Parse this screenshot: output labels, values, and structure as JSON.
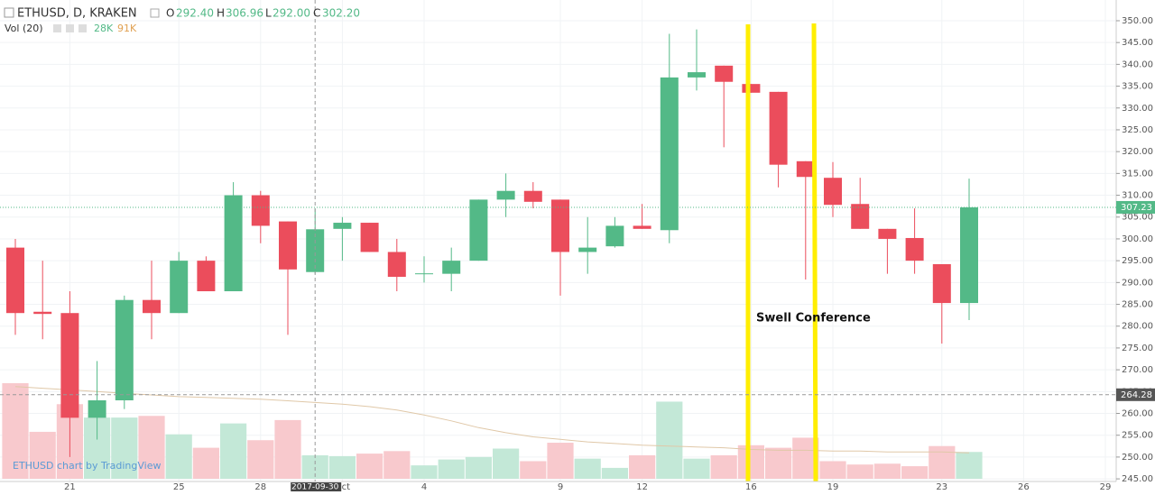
{
  "header": {
    "symbol": "ETHUSD, D, KRAKEN",
    "open_label": "O",
    "open": "292.40",
    "high_label": "H",
    "high": "306.96",
    "low_label": "L",
    "low": "292.00",
    "close_label": "C",
    "close": "302.20",
    "volume_label": "Vol (20)",
    "volume": "28K",
    "volume_ma": "91K"
  },
  "watermark": "ETHUSD chart by TradingView",
  "annotation": "Swell Conference",
  "chart_data": {
    "type": "candlestick",
    "x": [
      "2017-09-19",
      "2017-09-20",
      "2017-09-21",
      "2017-09-22",
      "2017-09-23",
      "2017-09-24",
      "2017-09-25",
      "2017-09-26",
      "2017-09-27",
      "2017-09-28",
      "2017-09-29",
      "2017-09-30",
      "2017-10-01",
      "2017-10-02",
      "2017-10-03",
      "2017-10-04",
      "2017-10-05",
      "2017-10-06",
      "2017-10-07",
      "2017-10-08",
      "2017-10-09",
      "2017-10-10",
      "2017-10-11",
      "2017-10-12",
      "2017-10-13",
      "2017-10-14",
      "2017-10-15",
      "2017-10-16",
      "2017-10-17",
      "2017-10-18",
      "2017-10-19",
      "2017-10-20",
      "2017-10-21",
      "2017-10-22",
      "2017-10-23",
      "2017-10-24"
    ],
    "open": [
      298,
      283.3,
      283,
      259,
      263,
      286,
      283,
      295,
      288,
      310,
      304,
      292.4,
      302.3,
      303.7,
      297,
      291.9,
      292,
      295,
      309,
      311,
      309,
      297,
      298.3,
      303,
      302,
      337,
      339.7,
      335.5,
      333.7,
      317.8,
      314,
      308,
      302.3,
      300.2,
      294.2,
      285.3
    ],
    "high": [
      300,
      295,
      288,
      272,
      287,
      295,
      297,
      296,
      313,
      311,
      304,
      306.96,
      305,
      303.7,
      300,
      296,
      298,
      309,
      315,
      313,
      309,
      305,
      305,
      308,
      347,
      348,
      339.7,
      335.5,
      333.7,
      317.8,
      317.6,
      314,
      302.3,
      307,
      294.2,
      313.8
    ],
    "low": [
      278,
      277,
      250,
      254,
      261,
      277,
      283,
      288,
      288,
      299,
      278,
      292.0,
      295,
      297,
      288,
      290,
      288,
      295,
      305,
      307,
      287,
      292,
      298,
      302.3,
      299,
      334,
      321,
      333.5,
      311.8,
      290.7,
      305,
      302.3,
      292,
      292,
      276,
      281.4
    ],
    "close": [
      283,
      282.8,
      259,
      263,
      286,
      283,
      295,
      288,
      310,
      303,
      293,
      302.2,
      303.7,
      297,
      291.3,
      292.1,
      295,
      309,
      311,
      308.5,
      297,
      298,
      303,
      302.3,
      337,
      338.2,
      336,
      333.5,
      317,
      314.2,
      307.8,
      302.3,
      300,
      295,
      285.3,
      307.23
    ],
    "volume": [
      114,
      56,
      89,
      73,
      73,
      75,
      53,
      37,
      66,
      46,
      70,
      28,
      27,
      30,
      33,
      16,
      23,
      26,
      36,
      21,
      43,
      24,
      13,
      28,
      92,
      24,
      28,
      40,
      37,
      49,
      21,
      17,
      18,
      15,
      39,
      32
    ],
    "volume_ma": [
      110,
      108,
      106,
      104,
      102,
      100,
      98,
      97,
      96,
      95,
      93,
      91,
      89,
      86,
      82,
      76,
      69,
      61,
      55,
      50,
      47,
      44,
      42,
      40,
      39,
      38,
      37,
      35,
      34,
      34,
      33,
      33,
      32,
      32,
      32,
      31
    ],
    "up_color": "#53b987",
    "down_color": "#eb4d5c",
    "up_volume_color": "#c3e8d7",
    "down_volume_color": "#f8c9cd",
    "volume_ma_color": "#e0c8a8",
    "ylim": [
      244.4,
      354.75
    ],
    "yticks": [
      {
        "value": 245,
        "label": "245.00"
      },
      {
        "value": 250,
        "label": "250.00"
      },
      {
        "value": 255,
        "label": "255.00"
      },
      {
        "value": 260,
        "label": "260.00"
      },
      {
        "value": 265,
        "label": "265.00"
      },
      {
        "value": 270,
        "label": "270.00"
      },
      {
        "value": 275,
        "label": "275.00"
      },
      {
        "value": 280,
        "label": "280.00"
      },
      {
        "value": 285,
        "label": "285.00"
      },
      {
        "value": 290,
        "label": "290.00"
      },
      {
        "value": 295,
        "label": "295.00"
      },
      {
        "value": 300,
        "label": "300.00"
      },
      {
        "value": 305,
        "label": "305.00"
      },
      {
        "value": 310,
        "label": "310.00"
      },
      {
        "value": 315,
        "label": "315.00"
      },
      {
        "value": 320,
        "label": "320.00"
      },
      {
        "value": 325,
        "label": "325.00"
      },
      {
        "value": 330,
        "label": "330.00"
      },
      {
        "value": 335,
        "label": "335.00"
      },
      {
        "value": 340,
        "label": "340.00"
      },
      {
        "value": 345,
        "label": "345.00"
      },
      {
        "value": 350,
        "label": "350.00"
      }
    ],
    "xticks": [
      {
        "value": "2017-09-21",
        "label": "21"
      },
      {
        "value": "2017-09-25",
        "label": "25"
      },
      {
        "value": "2017-09-28",
        "label": "28"
      },
      {
        "value": "2017-10-01",
        "label": "Oct"
      },
      {
        "value": "2017-10-04",
        "label": "4"
      },
      {
        "value": "2017-10-09",
        "label": "9"
      },
      {
        "value": "2017-10-12",
        "label": "12"
      },
      {
        "value": "2017-10-16",
        "label": "16"
      },
      {
        "value": "2017-10-19",
        "label": "19"
      },
      {
        "value": "2017-10-23",
        "label": "23"
      },
      {
        "value": "2017-10-26",
        "label": "26"
      },
      {
        "value": "2017-10-29",
        "label": "29"
      }
    ],
    "grid": true,
    "last_price": {
      "value": 307.23,
      "label": "307.23"
    },
    "crosshair": {
      "x": "2017-09-30",
      "price": {
        "value": 264.28,
        "label": "264.28"
      }
    }
  }
}
